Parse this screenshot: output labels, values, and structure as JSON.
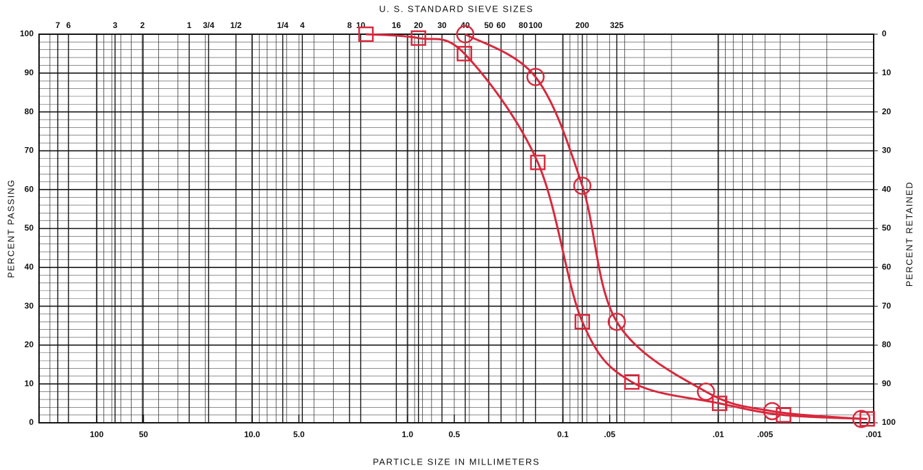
{
  "chart_data": {
    "type": "line",
    "title": "U. S. STANDARD SIEVE SIZES",
    "x_label": "PARTICLE SIZE IN MILLIMETERS",
    "y_label": "PERCENT PASSING",
    "y2_label": "PERCENT RETAINED",
    "x_log": true,
    "xlim": [
      235,
      0.001
    ],
    "xticks": [
      100,
      {
        "value": 50,
        "label": "50"
      },
      {
        "value": 10,
        "label": "10.0"
      },
      {
        "value": 5,
        "label": "5.0"
      },
      {
        "value": 1,
        "label": "1.0"
      },
      0.5,
      0.1,
      {
        "value": 0.05,
        "label": ".05"
      },
      {
        "value": 0.01,
        "label": ".01"
      },
      {
        "value": 0.005,
        "label": ".005"
      },
      {
        "value": 0.001,
        "label": ".001"
      }
    ],
    "x2ticks": [
      {
        "value": 178,
        "label": "7"
      },
      {
        "value": 152,
        "label": "6"
      },
      {
        "value": 76.2,
        "label": "3"
      },
      {
        "value": 50.8,
        "label": "2"
      },
      {
        "value": 25.4,
        "label": "1"
      },
      {
        "value": 19.05,
        "label": "3/4"
      },
      {
        "value": 12.7,
        "label": "1/2"
      },
      {
        "value": 6.35,
        "label": "1/4"
      },
      {
        "value": 4.75,
        "label": "4"
      },
      {
        "value": 2.36,
        "label": "8"
      },
      {
        "value": 2.0,
        "label": "10"
      },
      {
        "value": 1.18,
        "label": "16"
      },
      {
        "value": 0.85,
        "label": "20"
      },
      {
        "value": 0.6,
        "label": "30"
      },
      {
        "value": 0.425,
        "label": "40"
      },
      {
        "value": 0.3,
        "label": "50"
      },
      {
        "value": 0.25,
        "label": "60"
      },
      {
        "value": 0.18,
        "label": "80"
      },
      {
        "value": 0.15,
        "label": "100"
      },
      {
        "value": 0.075,
        "label": "200"
      },
      {
        "value": 0.045,
        "label": "325"
      }
    ],
    "ylim": [
      0,
      100
    ],
    "yticks": [
      0,
      10,
      20,
      30,
      40,
      50,
      60,
      70,
      80,
      90,
      100
    ],
    "y2lim": [
      100,
      0
    ],
    "y2ticks": [
      0,
      10,
      20,
      30,
      40,
      50,
      60,
      70,
      80,
      90,
      100
    ],
    "grid": true,
    "series": [
      {
        "marker": "circle",
        "color": "#d8283c",
        "x": [
          0.425,
          0.15,
          0.075,
          0.045,
          0.012,
          0.0045,
          0.0012
        ],
        "values": [
          100,
          89,
          61,
          26,
          8,
          3,
          1
        ]
      },
      {
        "marker": "square",
        "color": "#d8283c",
        "x": [
          1.85,
          0.85,
          0.43,
          0.145,
          0.075,
          0.036,
          0.0098,
          0.0038,
          0.0011
        ],
        "values": [
          100,
          99,
          95,
          67,
          26,
          10.5,
          5,
          2,
          1
        ]
      }
    ]
  }
}
